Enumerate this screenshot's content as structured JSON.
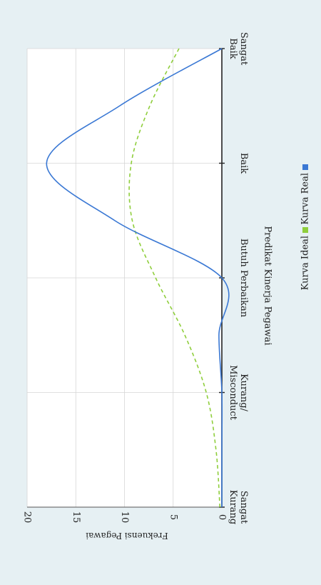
{
  "chart_data": {
    "type": "line",
    "orientation": "rotated-90-clockwise",
    "xlabel": "Predikat Kinerja Pegawai",
    "ylabel": "Frekuensi Pegawai",
    "categories": [
      "Sangat\nKurang",
      "Kurang/\nMisconduct",
      "Butuh Perbaikan",
      "Baik",
      "Sangat\nBaik"
    ],
    "ylim": [
      0,
      20
    ],
    "yticks": [
      0,
      5,
      10,
      15,
      20
    ],
    "grid": true,
    "legend_position": "bottom",
    "series": [
      {
        "name": "Kurva Ideal",
        "color": "#8fce3c",
        "style": "dashed",
        "x": [
          0,
          0.5,
          1,
          1.5,
          2,
          2.5,
          3,
          3.5,
          4
        ],
        "y": [
          0.2,
          0.6,
          1.6,
          3.8,
          6.8,
          9.2,
          9.3,
          7.4,
          4.4
        ]
      },
      {
        "name": "Kurva Real",
        "color": "#3a78d4",
        "style": "solid",
        "x": [
          0,
          0.5,
          1,
          1.5,
          2,
          2.5,
          3,
          3.5,
          4
        ],
        "y": [
          0,
          0,
          0,
          0.3,
          0,
          11,
          18,
          10.5,
          0
        ]
      }
    ]
  }
}
